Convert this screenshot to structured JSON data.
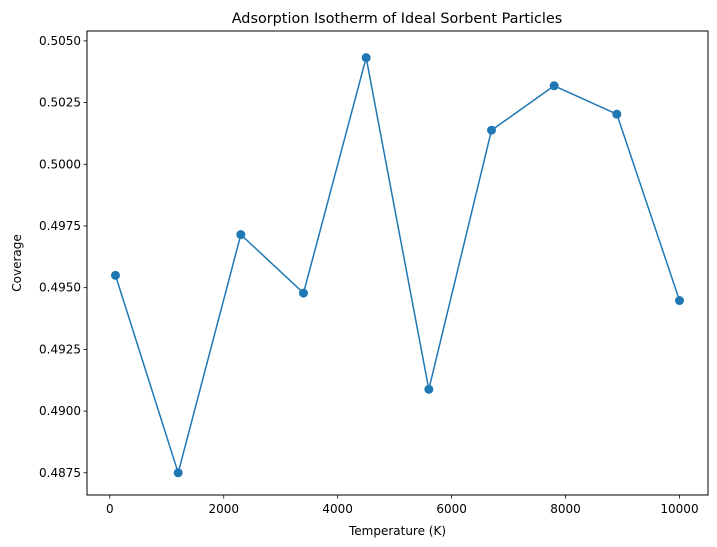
{
  "chart_data": {
    "type": "line",
    "title": "Adsorption Isotherm of Ideal Sorbent Particles",
    "xlabel": "Temperature (K)",
    "ylabel": "Coverage",
    "x": [
      100,
      1200,
      2300,
      3400,
      4500,
      5600,
      6700,
      7800,
      8900,
      10000
    ],
    "series": [
      {
        "values": [
          0.4955,
          0.4875,
          0.49715,
          0.49478,
          0.50432,
          0.49088,
          0.50138,
          0.50318,
          0.50203,
          0.49448
        ],
        "color": "#1f77b4",
        "marker": "circle"
      }
    ],
    "xlim": [
      -400,
      10500
    ],
    "ylim": [
      0.4866,
      0.5054
    ],
    "xticks": [
      0,
      2000,
      4000,
      6000,
      8000,
      10000
    ],
    "xtick_labels": [
      "0",
      "2000",
      "4000",
      "6000",
      "8000",
      "10000"
    ],
    "yticks": [
      0.4875,
      0.49,
      0.4925,
      0.495,
      0.4975,
      0.5,
      0.5025,
      0.505
    ],
    "ytick_labels": [
      "0.4875",
      "0.4900",
      "0.4925",
      "0.4950",
      "0.4975",
      "0.5000",
      "0.5025",
      "0.5050"
    ],
    "grid": false,
    "legend": "none"
  }
}
